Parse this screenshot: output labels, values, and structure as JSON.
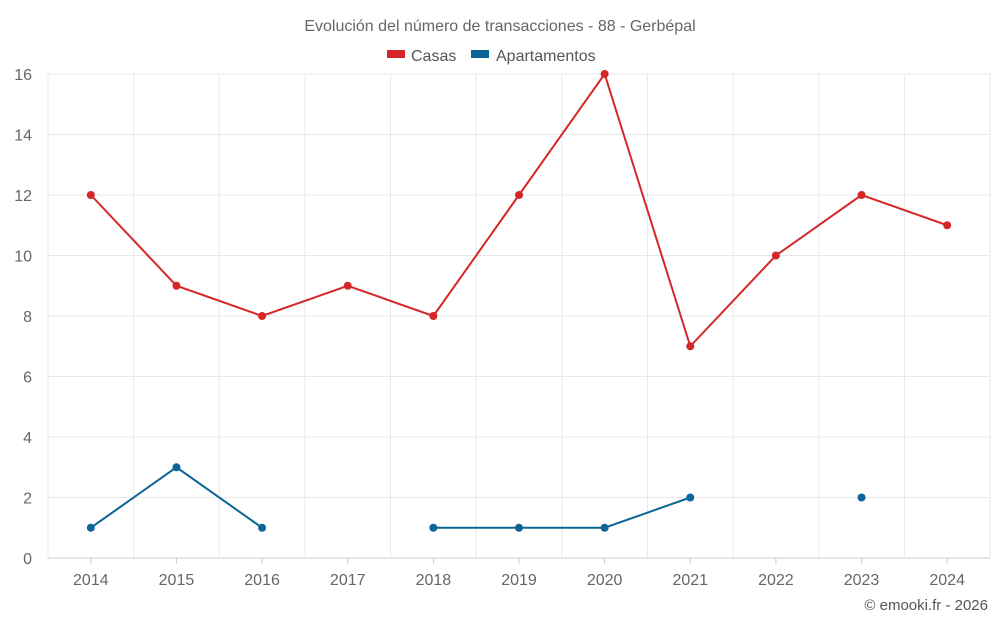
{
  "chart_data": {
    "type": "line",
    "title": "Evolución del número de transacciones - 88 - Gerbépal",
    "categories": [
      "2014",
      "2015",
      "2016",
      "2017",
      "2018",
      "2019",
      "2020",
      "2021",
      "2022",
      "2023",
      "2024"
    ],
    "series": [
      {
        "name": "Casas",
        "color": "#d62728",
        "values": [
          12,
          9,
          8,
          9,
          8,
          12,
          16,
          7,
          10,
          12,
          11
        ]
      },
      {
        "name": "Apartamentos",
        "color": "#0d6597",
        "values": [
          1,
          3,
          1,
          null,
          1,
          1,
          1,
          2,
          null,
          2,
          null
        ]
      }
    ],
    "ylim": [
      0,
      16
    ],
    "yticks": [
      "0",
      "2",
      "4",
      "6",
      "8",
      "10",
      "12",
      "14",
      "16"
    ],
    "xlabel": "",
    "ylabel": "",
    "grid": true,
    "legend_position": "top-center"
  },
  "credit": "© emooki.fr - 2026"
}
